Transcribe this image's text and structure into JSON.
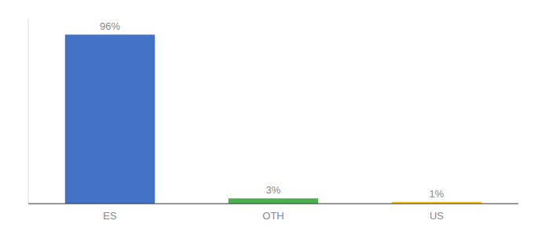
{
  "chart_data": {
    "type": "bar",
    "categories": [
      "ES",
      "OTH",
      "US"
    ],
    "values": [
      96,
      3,
      1
    ],
    "value_labels": [
      "96%",
      "3%",
      "1%"
    ],
    "colors": [
      "#4472c4",
      "#4caf50",
      "#ffc107"
    ],
    "ylim": [
      0,
      105
    ],
    "data_labels": true,
    "tick_labels": "x"
  }
}
